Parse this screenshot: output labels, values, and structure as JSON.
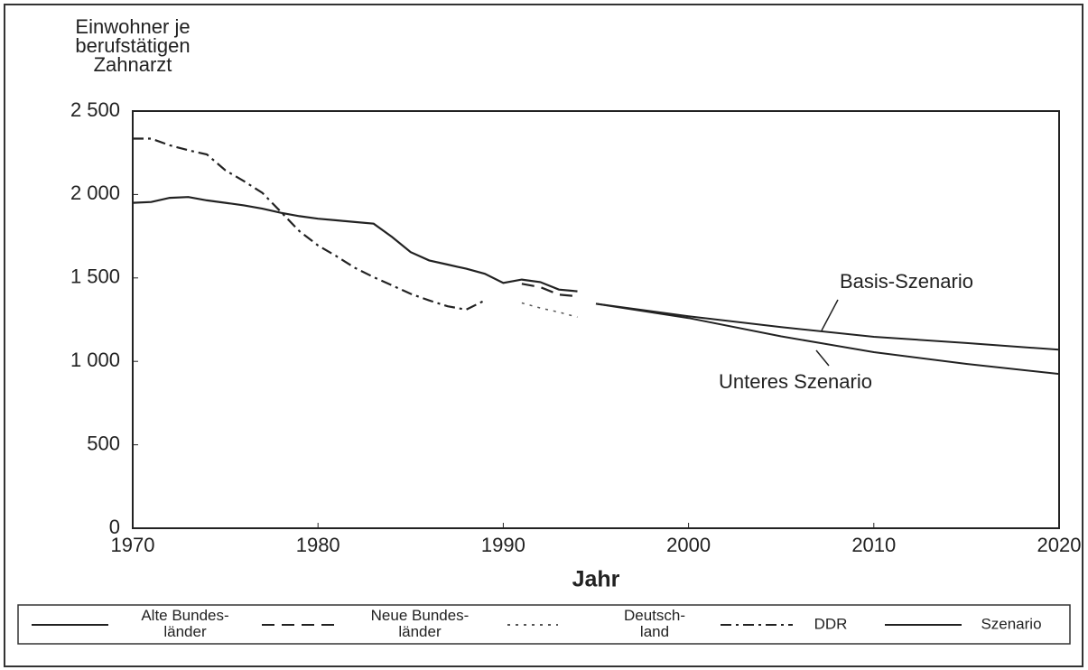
{
  "chart_data": {
    "type": "line",
    "y_label": [
      "Einwohner je",
      "berufstätigen",
      "Zahnarzt"
    ],
    "x_label": "Jahr",
    "xlim": [
      1970,
      2020
    ],
    "xticks": [
      1970,
      1980,
      1990,
      2000,
      2010,
      2020
    ],
    "ylim": [
      0,
      2500
    ],
    "yticks": [
      0,
      500,
      {
        "value": 1000,
        "label": "1 000"
      },
      {
        "value": 1500,
        "label": "1 500"
      },
      {
        "value": 2000,
        "label": "2 000"
      },
      {
        "value": 2500,
        "label": "2 500"
      }
    ],
    "series": [
      {
        "name": "Alte Bundes-\nländer",
        "color": "#222222",
        "dash": "solid",
        "x": [
          1970,
          1971,
          1972,
          1973,
          1974,
          1975,
          1976,
          1977,
          1978,
          1979,
          1980,
          1981,
          1982,
          1983,
          1984,
          1985,
          1986,
          1987,
          1988,
          1989,
          1990,
          1991,
          1992,
          1993,
          1994
        ],
        "values": [
          1950,
          1955,
          1980,
          1985,
          1965,
          1950,
          1935,
          1915,
          1890,
          1870,
          1855,
          1845,
          1835,
          1825,
          1745,
          1655,
          1605,
          1580,
          1555,
          1525,
          1470,
          1490,
          1475,
          1430,
          1420
        ]
      },
      {
        "name": "Neue Bundes-\nländer",
        "color": "#222222",
        "dash": "dashed",
        "x": [
          1991,
          1992,
          1993,
          1994
        ],
        "values": [
          1465,
          1445,
          1400,
          1390
        ]
      },
      {
        "name": "Deutsch-\nland",
        "color": "#555555",
        "dash": "dotted",
        "x": [
          1991,
          1992,
          1993,
          1994
        ],
        "values": [
          1350,
          1320,
          1295,
          1265
        ]
      },
      {
        "name": "DDR",
        "color": "#222222",
        "dash": "dashdot",
        "x": [
          1970,
          1971,
          1972,
          1973,
          1974,
          1975,
          1976,
          1977,
          1978,
          1979,
          1980,
          1981,
          1982,
          1983,
          1984,
          1985,
          1986,
          1987,
          1988,
          1989
        ],
        "values": [
          2335,
          2335,
          2295,
          2265,
          2240,
          2145,
          2080,
          2010,
          1895,
          1780,
          1695,
          1630,
          1560,
          1505,
          1455,
          1405,
          1365,
          1330,
          1310,
          1365
        ]
      },
      {
        "name": "Szenario",
        "color": "#222222",
        "dash": "solid",
        "lines": [
          {
            "label": "Basis-Szenario",
            "x": [
              1995,
              2000,
              2005,
              2010,
              2015,
              2020
            ],
            "values": [
              1345,
              1270,
              1205,
              1147,
              1110,
              1070
            ]
          },
          {
            "label": "Unteres Szenario",
            "x": [
              1995,
              2000,
              2005,
              2010,
              2015,
              2020
            ],
            "values": [
              1345,
              1260,
              1150,
              1055,
              985,
              925
            ]
          }
        ]
      }
    ]
  }
}
